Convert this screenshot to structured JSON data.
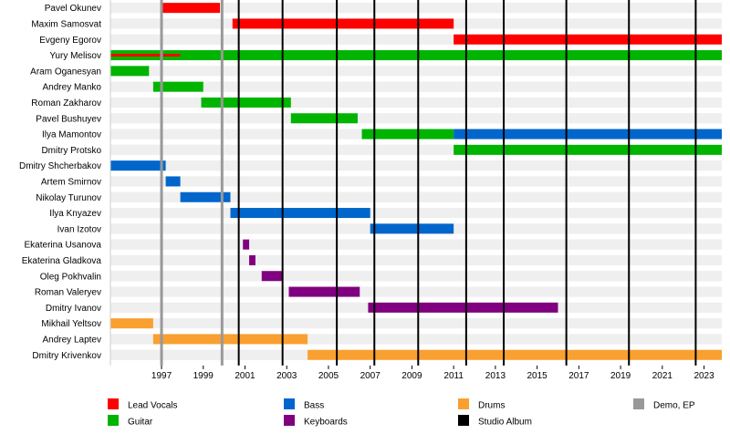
{
  "chart_data": {
    "type": "bar",
    "subtype": "timeline",
    "title": "",
    "xlabel": "",
    "ylabel": "",
    "xlim": [
      1994.55,
      2023.85
    ],
    "grid": true,
    "legend_position": "bottom",
    "x_ticks": [
      1997,
      1999,
      2001,
      2003,
      2005,
      2007,
      2009,
      2011,
      2013,
      2015,
      2017,
      2019,
      2021,
      2023
    ],
    "categories": [
      "Pavel Okunev",
      "Maxim Samosvat",
      "Evgeny Egorov",
      "Yury Melisov",
      "Aram Oganesyan",
      "Andrey Manko",
      "Roman Zakharov",
      "Pavel Bushuyev",
      "Ilya Mamontov",
      "Dmitry Protsko",
      "Dmitry Shcherbakov",
      "Artem Smirnov",
      "Nikolay Turunov",
      "Ilya Knyazev",
      "Ivan Izotov",
      "Ekaterina Usanova",
      "Ekaterina Gladkova",
      "Oleg Pokhvalin",
      "Roman Valeryev",
      "Dmitry Ivanov",
      "Mikhail Yeltsov",
      "Andrey Laptev",
      "Dmitry Krivenkov"
    ],
    "roles": [
      {
        "key": "vocals",
        "name": "Lead Vocals",
        "color": "#ff0000"
      },
      {
        "key": "guitar",
        "name": "Guitar",
        "color": "#00b400"
      },
      {
        "key": "bass",
        "name": "Bass",
        "color": "#0066cc"
      },
      {
        "key": "keyboards",
        "name": "Keyboards",
        "color": "#800080"
      },
      {
        "key": "drums",
        "name": "Drums",
        "color": "#f9a030"
      },
      {
        "key": "studio",
        "name": "Studio Album",
        "color": "#000000"
      },
      {
        "key": "demo",
        "name": "Demo, EP",
        "color": "#999999"
      }
    ],
    "bars": [
      {
        "member": 0,
        "role": "vocals",
        "start": 1997.0,
        "end": 1999.8
      },
      {
        "member": 1,
        "role": "vocals",
        "start": 2000.4,
        "end": 2011.0
      },
      {
        "member": 2,
        "role": "vocals",
        "start": 2011.0,
        "end": 2023.85
      },
      {
        "member": 3,
        "role": "guitar",
        "start": 1994.55,
        "end": 2023.85
      },
      {
        "member": 3,
        "role": "vocals",
        "start": 1994.55,
        "end": 1997.9,
        "inner": true
      },
      {
        "member": 4,
        "role": "guitar",
        "start": 1994.55,
        "end": 1996.4
      },
      {
        "member": 5,
        "role": "guitar",
        "start": 1996.6,
        "end": 1999.0
      },
      {
        "member": 6,
        "role": "guitar",
        "start": 1998.9,
        "end": 2003.2
      },
      {
        "member": 7,
        "role": "guitar",
        "start": 2003.2,
        "end": 2006.4
      },
      {
        "member": 8,
        "role": "guitar",
        "start": 2006.6,
        "end": 2011.0
      },
      {
        "member": 8,
        "role": "bass",
        "start": 2011.0,
        "end": 2023.85
      },
      {
        "member": 9,
        "role": "guitar",
        "start": 2011.0,
        "end": 2023.85
      },
      {
        "member": 10,
        "role": "bass",
        "start": 1994.55,
        "end": 1997.2
      },
      {
        "member": 11,
        "role": "bass",
        "start": 1997.2,
        "end": 1997.9
      },
      {
        "member": 12,
        "role": "bass",
        "start": 1997.9,
        "end": 2000.3
      },
      {
        "member": 13,
        "role": "bass",
        "start": 2000.3,
        "end": 2007.0
      },
      {
        "member": 14,
        "role": "bass",
        "start": 2007.0,
        "end": 2011.0
      },
      {
        "member": 15,
        "role": "keyboards",
        "start": 2000.9,
        "end": 2001.2
      },
      {
        "member": 16,
        "role": "keyboards",
        "start": 2001.2,
        "end": 2001.5
      },
      {
        "member": 17,
        "role": "keyboards",
        "start": 2001.8,
        "end": 2002.8
      },
      {
        "member": 18,
        "role": "keyboards",
        "start": 2003.1,
        "end": 2006.5
      },
      {
        "member": 19,
        "role": "keyboards",
        "start": 2006.9,
        "end": 2016.0
      },
      {
        "member": 20,
        "role": "drums",
        "start": 1994.55,
        "end": 1996.6
      },
      {
        "member": 21,
        "role": "drums",
        "start": 1996.6,
        "end": 2004.0
      },
      {
        "member": 22,
        "role": "drums",
        "start": 2004.0,
        "end": 2023.85
      }
    ],
    "markers": [
      {
        "type": "demo",
        "x": 1997.0
      },
      {
        "type": "demo",
        "x": 1999.9
      },
      {
        "type": "studio",
        "x": 2000.7
      },
      {
        "type": "studio",
        "x": 2002.8
      },
      {
        "type": "studio",
        "x": 2005.4
      },
      {
        "type": "studio",
        "x": 2007.2
      },
      {
        "type": "studio",
        "x": 2009.3
      },
      {
        "type": "studio",
        "x": 2011.6
      },
      {
        "type": "studio",
        "x": 2013.4
      },
      {
        "type": "studio",
        "x": 2016.4
      },
      {
        "type": "studio",
        "x": 2019.4
      },
      {
        "type": "studio",
        "x": 2022.6
      }
    ]
  }
}
